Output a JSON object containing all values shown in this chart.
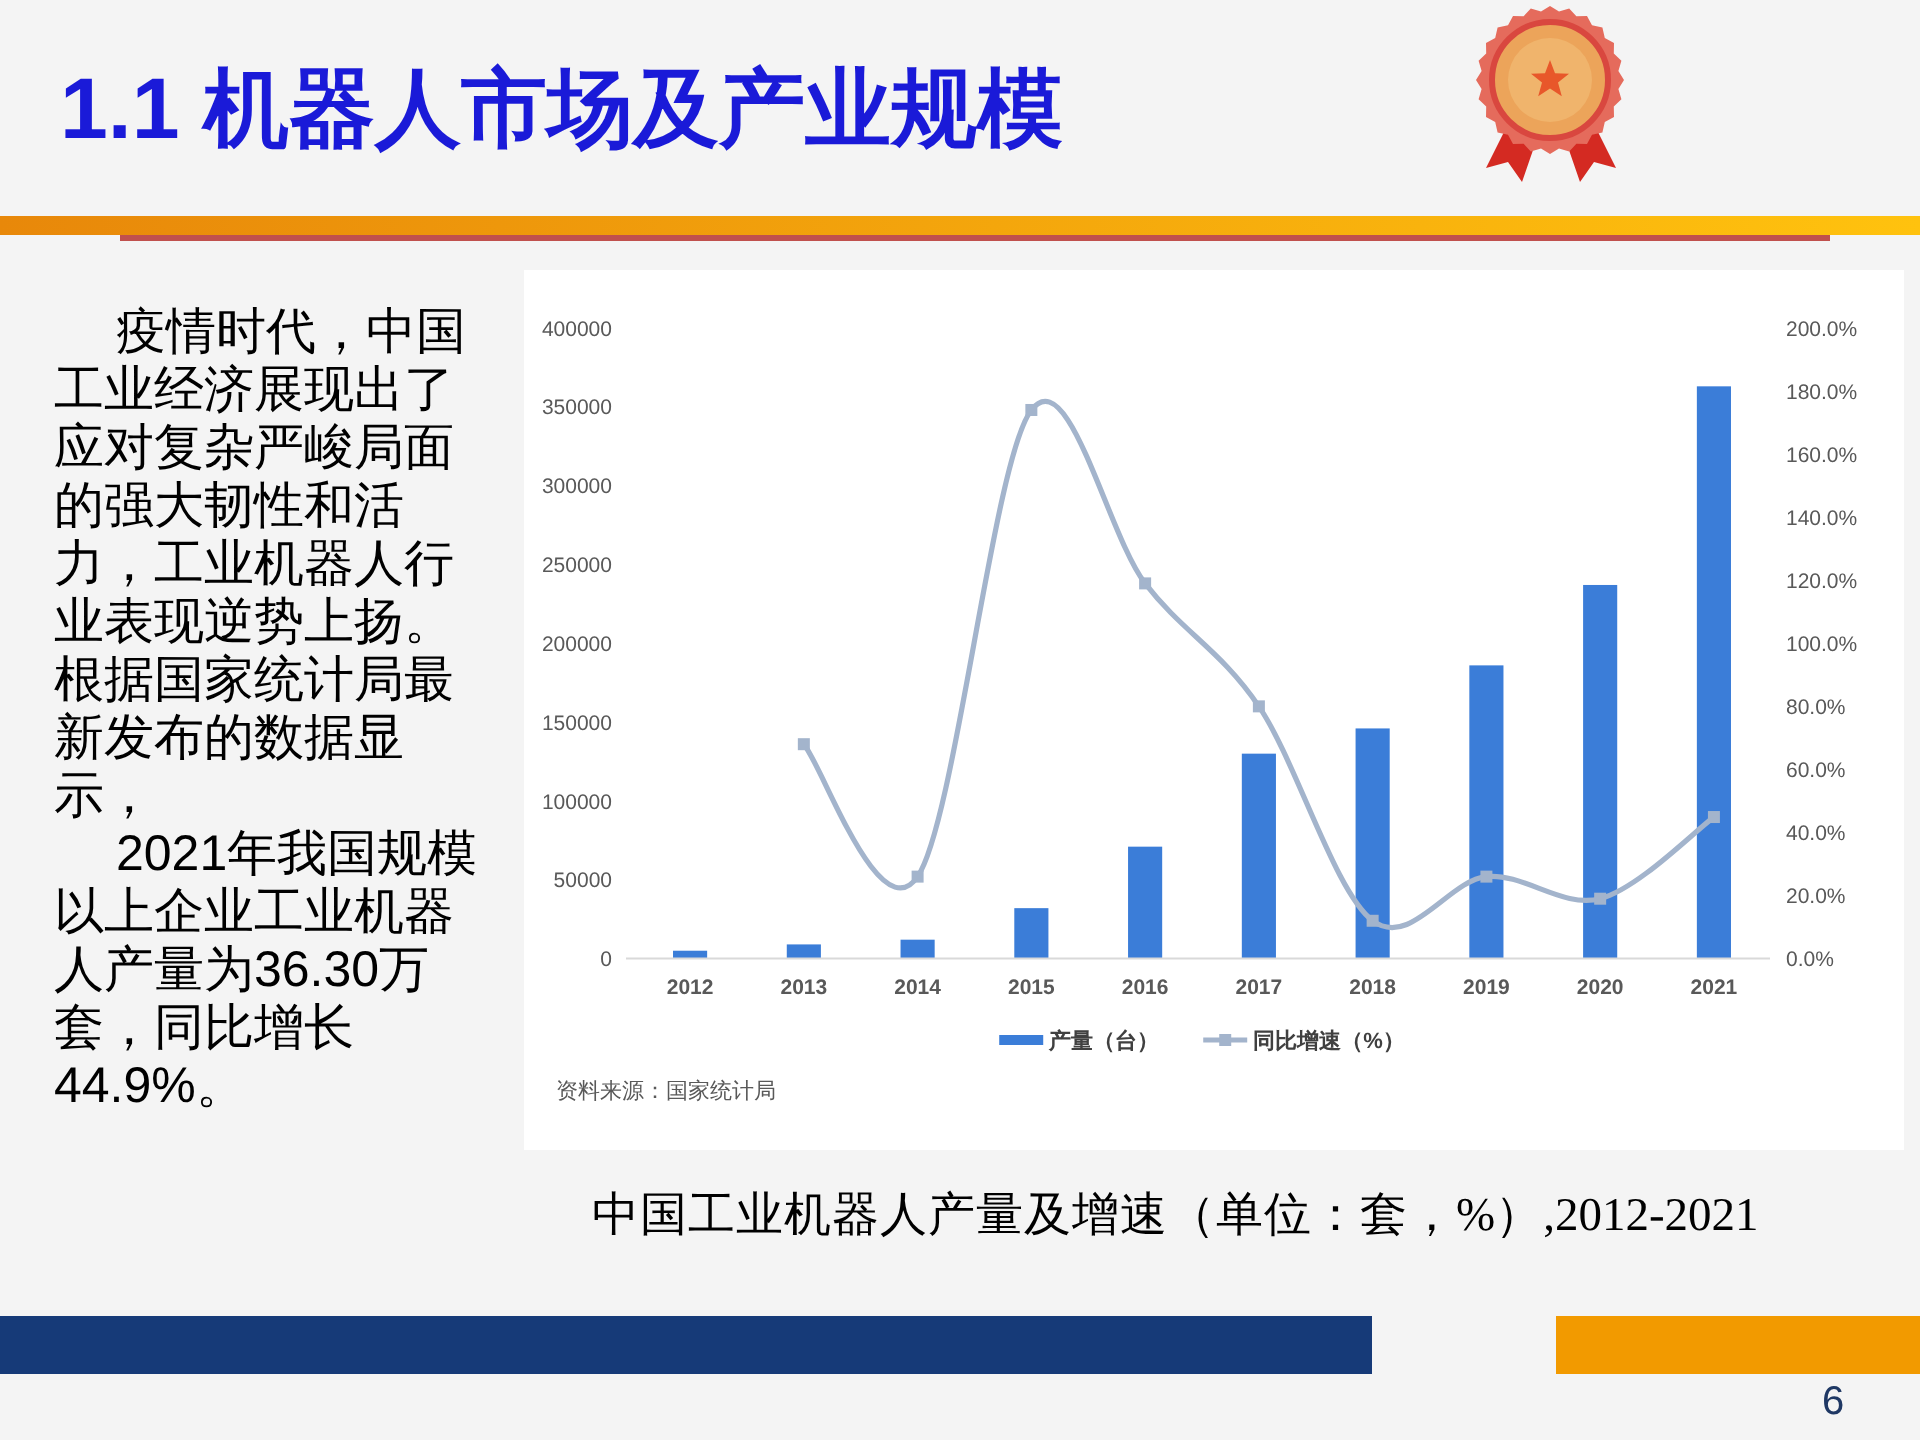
{
  "chart_data": {
    "type": "bar",
    "title": "1.1 机器人市场及产业规模",
    "categories": [
      "2012",
      "2013",
      "2014",
      "2015",
      "2016",
      "2017",
      "2018",
      "2019",
      "2020",
      "2021"
    ],
    "series": [
      {
        "name": "产量（台）",
        "color": "#3b7dd8",
        "values": [
          5000,
          9000,
          12000,
          32000,
          71000,
          130000,
          146000,
          186000,
          237000,
          363000
        ]
      },
      {
        "name": "同比增速（%）",
        "type": "line",
        "axis": "y2",
        "color": "#a3b4cc",
        "marker": "square",
        "values": [
          null,
          68,
          26,
          174,
          119,
          80,
          12,
          26,
          19,
          44.9
        ]
      }
    ],
    "ylim": [
      0,
      400000
    ],
    "yticks": [
      0,
      50000,
      100000,
      150000,
      200000,
      250000,
      300000,
      350000,
      400000
    ],
    "y2lim": [
      0,
      200
    ],
    "y2ticks": [
      {
        "value": 0,
        "label": "0.0%"
      },
      {
        "value": 20,
        "label": "20.0%"
      },
      {
        "value": 40,
        "label": "40.0%"
      },
      {
        "value": 60,
        "label": "60.0%"
      },
      {
        "value": 80,
        "label": "80.0%"
      },
      {
        "value": 100,
        "label": "100.0%"
      },
      {
        "value": 120,
        "label": "120.0%"
      },
      {
        "value": 140,
        "label": "140.0%"
      },
      {
        "value": 160,
        "label": "160.0%"
      },
      {
        "value": 180,
        "label": "180.0%"
      },
      {
        "value": 200,
        "label": "200.0%"
      }
    ],
    "legend": "bottom",
    "annotations": [
      "疫情时代，中国工业经济展现出了应对复杂严峻局面的强大韧性和活力，工业机器人行业表现逆势上扬。根据国家统计局最新发布的数据显示，",
      "2021年我国规模以上企业工业机器人产量为36.30万套，同比增长44.9%。",
      "资料来源：国家统计局",
      "中国工业机器人产量及增速（单位：套，%）,2012-2021",
      "6"
    ]
  }
}
